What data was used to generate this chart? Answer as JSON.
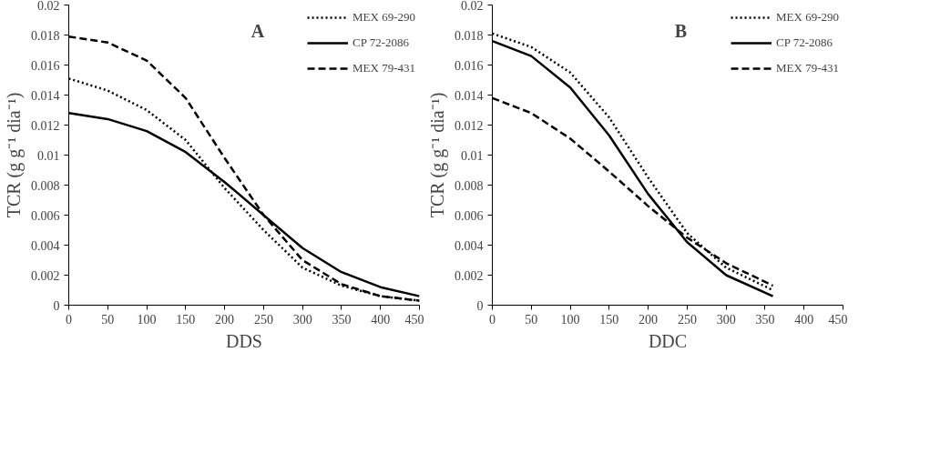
{
  "chart_data": [
    {
      "type": "line",
      "annotations": [
        "A"
      ],
      "xlabel": "DDS",
      "ylabel": "TCR (g g⁻¹ dia⁻¹)",
      "xlim": [
        0,
        450
      ],
      "ylim": [
        0,
        0.02
      ],
      "xticks": [
        0,
        50,
        100,
        150,
        200,
        250,
        300,
        350,
        400,
        450
      ],
      "yticks": [
        0,
        0.002,
        0.004,
        0.006,
        0.008,
        0.01,
        0.012,
        0.014,
        0.016,
        0.018,
        0.02
      ],
      "grid": false,
      "legend": "top right",
      "marker": "none",
      "x": [
        0,
        50,
        100,
        150,
        200,
        250,
        300,
        350,
        400,
        450
      ],
      "series": [
        {
          "name": "MEX 69-290",
          "color": "#000000",
          "line_style": "dotted",
          "values": [
            0.0151,
            0.0143,
            0.013,
            0.011,
            0.0078,
            0.005,
            0.0025,
            0.0013,
            0.0006,
            0.0003
          ]
        },
        {
          "name": "CP 72-2086",
          "color": "#000000",
          "line_style": "solid",
          "values": [
            0.0128,
            0.0124,
            0.0116,
            0.0102,
            0.0082,
            0.006,
            0.0038,
            0.0022,
            0.0012,
            0.0006
          ]
        },
        {
          "name": "MEX 79-431",
          "color": "#000000",
          "line_style": "dashed",
          "values": [
            0.0179,
            0.0175,
            0.0163,
            0.0138,
            0.0098,
            0.006,
            0.003,
            0.0014,
            0.0006,
            0.0003
          ]
        }
      ]
    },
    {
      "type": "line",
      "annotations": [
        "B"
      ],
      "xlabel": "DDC",
      "ylabel": "TCR (g g⁻¹ dia⁻¹)",
      "xlim": [
        0,
        450
      ],
      "ylim": [
        0,
        0.02
      ],
      "xticks": [
        0,
        50,
        100,
        150,
        200,
        250,
        300,
        350,
        400,
        450
      ],
      "yticks": [
        0,
        0.002,
        0.004,
        0.006,
        0.008,
        0.01,
        0.012,
        0.014,
        0.016,
        0.018,
        0.02
      ],
      "grid": false,
      "legend": "top right",
      "marker": "none",
      "x": [
        0,
        50,
        100,
        150,
        200,
        250,
        300,
        360
      ],
      "series": [
        {
          "name": "MEX 69-290",
          "color": "#000000",
          "line_style": "dotted",
          "values": [
            0.0181,
            0.0172,
            0.0155,
            0.0125,
            0.0085,
            0.0048,
            0.0025,
            0.001
          ]
        },
        {
          "name": "CP 72-2086",
          "color": "#000000",
          "line_style": "solid",
          "values": [
            0.0176,
            0.0166,
            0.0145,
            0.0113,
            0.0074,
            0.0042,
            0.002,
            0.0006
          ]
        },
        {
          "name": "MEX 79-431",
          "color": "#000000",
          "line_style": "dashed",
          "values": [
            0.0138,
            0.0128,
            0.0111,
            0.0089,
            0.0066,
            0.0045,
            0.0028,
            0.0013
          ]
        }
      ]
    }
  ]
}
